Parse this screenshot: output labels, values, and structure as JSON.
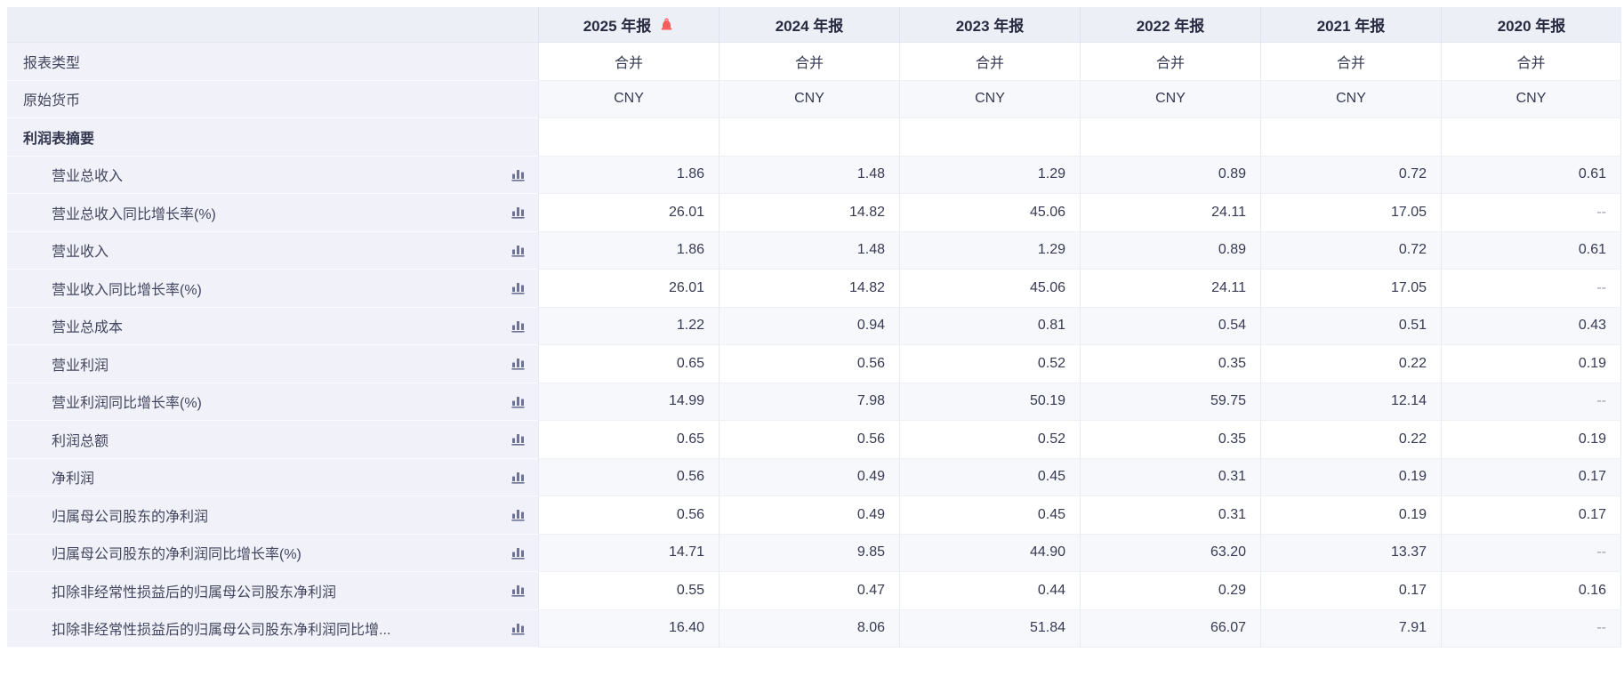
{
  "colors": {
    "bell": "#f85c5c",
    "chart_icon": "#6e7294",
    "header_bg": "#edeff7",
    "label_col_bg": "#f1f2f9",
    "tint_row_bg": "#f7f8fc"
  },
  "table": {
    "header": {
      "corner_label": "",
      "years": [
        {
          "label": "2025 年报",
          "bell": true
        },
        {
          "label": "2024 年报",
          "bell": false
        },
        {
          "label": "2023 年报",
          "bell": false
        },
        {
          "label": "2022 年报",
          "bell": false
        },
        {
          "label": "2021 年报",
          "bell": false
        },
        {
          "label": "2020 年报",
          "bell": false
        }
      ]
    },
    "rows": [
      {
        "type": "meta",
        "label": "报表类型",
        "icon": false,
        "values": [
          "合并",
          "合并",
          "合并",
          "合并",
          "合并",
          "合并"
        ]
      },
      {
        "type": "meta",
        "label": "原始货币",
        "icon": false,
        "values": [
          "CNY",
          "CNY",
          "CNY",
          "CNY",
          "CNY",
          "CNY"
        ]
      },
      {
        "type": "section",
        "label": "利润表摘要",
        "icon": false,
        "values": [
          "",
          "",
          "",
          "",
          "",
          ""
        ]
      },
      {
        "type": "metric",
        "label": "营业总收入",
        "icon": true,
        "values": [
          "1.86",
          "1.48",
          "1.29",
          "0.89",
          "0.72",
          "0.61"
        ]
      },
      {
        "type": "metric",
        "label": "营业总收入同比增长率(%)",
        "icon": true,
        "values": [
          "26.01",
          "14.82",
          "45.06",
          "24.11",
          "17.05",
          "--"
        ]
      },
      {
        "type": "metric",
        "label": "营业收入",
        "icon": true,
        "values": [
          "1.86",
          "1.48",
          "1.29",
          "0.89",
          "0.72",
          "0.61"
        ]
      },
      {
        "type": "metric",
        "label": "营业收入同比增长率(%)",
        "icon": true,
        "values": [
          "26.01",
          "14.82",
          "45.06",
          "24.11",
          "17.05",
          "--"
        ]
      },
      {
        "type": "metric",
        "label": "营业总成本",
        "icon": true,
        "values": [
          "1.22",
          "0.94",
          "0.81",
          "0.54",
          "0.51",
          "0.43"
        ]
      },
      {
        "type": "metric",
        "label": "营业利润",
        "icon": true,
        "values": [
          "0.65",
          "0.56",
          "0.52",
          "0.35",
          "0.22",
          "0.19"
        ]
      },
      {
        "type": "metric",
        "label": "营业利润同比增长率(%)",
        "icon": true,
        "values": [
          "14.99",
          "7.98",
          "50.19",
          "59.75",
          "12.14",
          "--"
        ]
      },
      {
        "type": "metric",
        "label": "利润总额",
        "icon": true,
        "values": [
          "0.65",
          "0.56",
          "0.52",
          "0.35",
          "0.22",
          "0.19"
        ]
      },
      {
        "type": "metric",
        "label": "净利润",
        "icon": true,
        "values": [
          "0.56",
          "0.49",
          "0.45",
          "0.31",
          "0.19",
          "0.17"
        ]
      },
      {
        "type": "metric",
        "label": "归属母公司股东的净利润",
        "icon": true,
        "values": [
          "0.56",
          "0.49",
          "0.45",
          "0.31",
          "0.19",
          "0.17"
        ]
      },
      {
        "type": "metric",
        "label": "归属母公司股东的净利润同比增长率(%)",
        "icon": true,
        "values": [
          "14.71",
          "9.85",
          "44.90",
          "63.20",
          "13.37",
          "--"
        ]
      },
      {
        "type": "metric",
        "label": "扣除非经常性损益后的归属母公司股东净利润",
        "icon": true,
        "values": [
          "0.55",
          "0.47",
          "0.44",
          "0.29",
          "0.17",
          "0.16"
        ]
      },
      {
        "type": "metric",
        "label": "扣除非经常性损益后的归属母公司股东净利润同比增...",
        "icon": true,
        "values": [
          "16.40",
          "8.06",
          "51.84",
          "66.07",
          "7.91",
          "--"
        ]
      }
    ]
  }
}
